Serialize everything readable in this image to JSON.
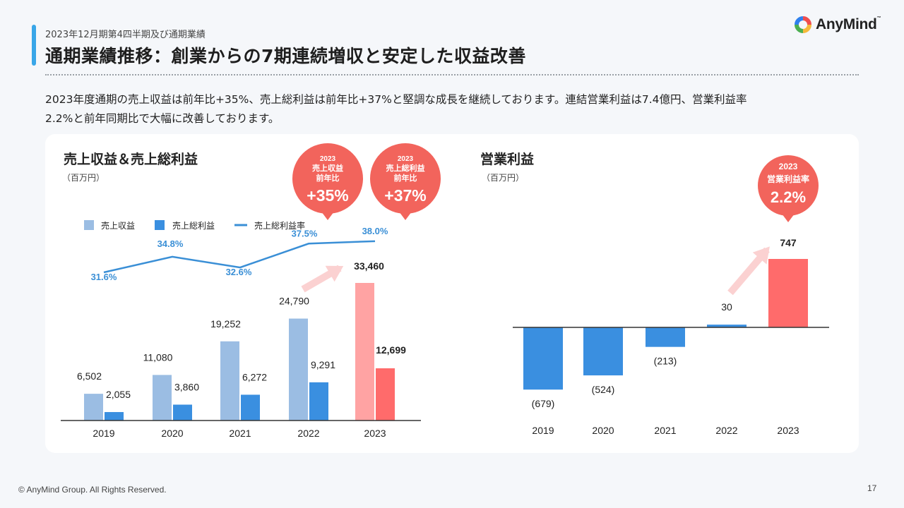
{
  "header": {
    "subtitle": "2023年12月期第4四半期及び通期業績",
    "title": "通期業績推移：創業からの7期連続増収と安定した収益改善",
    "logo_text": "AnyMind"
  },
  "description": {
    "line1": "2023年度通期の売上収益は前年比+35%、売上総利益は前年比+37%と堅調な成長を継続しております。連結営業利益は7.4億円、営業利益率",
    "line2": "2.2%と前年同期比で大幅に改善しております。"
  },
  "footer": {
    "copyright": "© AnyMind Group. All Rights Reserved.",
    "page_number": "17"
  },
  "colors": {
    "revenue": "#9bbde3",
    "gross_profit": "#3a8fe0",
    "margin_line": "#3a8fd6",
    "highlight_revenue": "#ffa3a3",
    "highlight_profit": "#ff6b6b",
    "badge": "#f2645c",
    "arrow": "#fbd1d1"
  },
  "chart_data": [
    {
      "type": "bar",
      "title": "売上収益＆売上総利益",
      "unit": "（百万円）",
      "categories": [
        "2019",
        "2020",
        "2021",
        "2022",
        "2023"
      ],
      "series": [
        {
          "name": "売上収益",
          "kind": "bar",
          "values": [
            6502,
            11080,
            19252,
            24790,
            33460
          ],
          "labels": [
            "6,502",
            "11,080",
            "19,252",
            "24,790",
            "33,460"
          ]
        },
        {
          "name": "売上総利益",
          "kind": "bar",
          "values": [
            2055,
            3860,
            6272,
            9291,
            12699
          ],
          "labels": [
            "2,055",
            "3,860",
            "6,272",
            "9,291",
            "12,699"
          ]
        },
        {
          "name": "売上総利益率",
          "kind": "line",
          "values": [
            31.6,
            34.8,
            32.6,
            37.5,
            38.0
          ],
          "labels": [
            "31.6%",
            "34.8%",
            "32.6%",
            "37.5%",
            "38.0%"
          ]
        }
      ],
      "highlight_category": "2023",
      "legend_position": "top-left",
      "badges": [
        {
          "year": "2023",
          "line1": "売上収益",
          "line2": "前年比",
          "value": "+35%"
        },
        {
          "year": "2023",
          "line1": "売上総利益",
          "line2": "前年比",
          "value": "+37%"
        }
      ]
    },
    {
      "type": "bar",
      "title": "営業利益",
      "unit": "（百万円）",
      "categories": [
        "2019",
        "2020",
        "2021",
        "2022",
        "2023"
      ],
      "series": [
        {
          "name": "営業利益",
          "values": [
            -679,
            -524,
            -213,
            30,
            747
          ],
          "labels": [
            "(679)",
            "(524)",
            "(213)",
            "30",
            "747"
          ]
        }
      ],
      "highlight_category": "2023",
      "badge": {
        "year": "2023",
        "line1": "営業利益率",
        "value": "2.2%"
      }
    }
  ]
}
